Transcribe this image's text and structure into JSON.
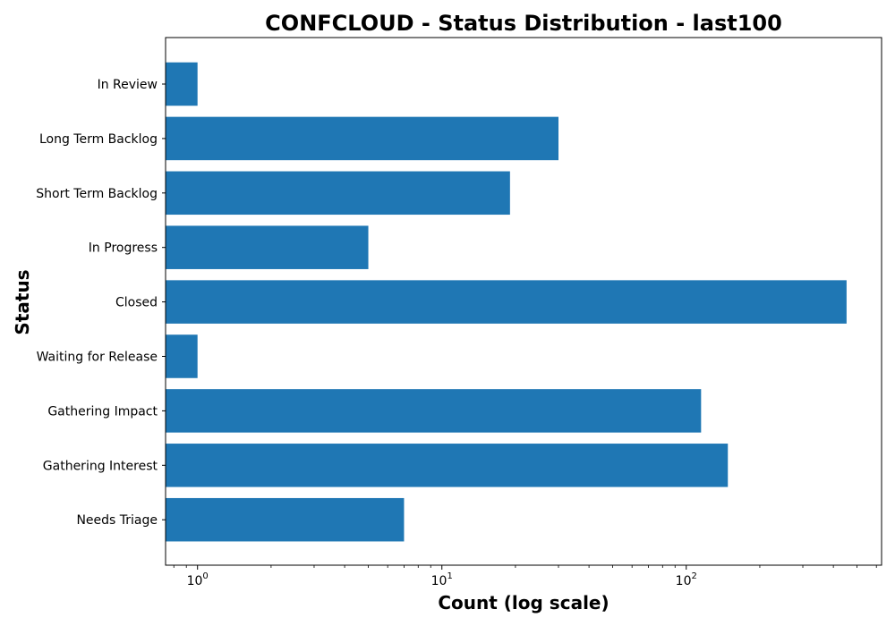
{
  "chart_data": {
    "type": "bar",
    "orientation": "horizontal",
    "title": "CONFCLOUD - Status Distribution - last100",
    "xlabel": "Count (log scale)",
    "ylabel": "Status",
    "x_scale": "log",
    "xlim": [
      0.74,
      630
    ],
    "x_ticks": [
      {
        "value": 1,
        "base": "10",
        "exp": "0"
      },
      {
        "value": 10,
        "base": "10",
        "exp": "1"
      },
      {
        "value": 100,
        "base": "10",
        "exp": "2"
      }
    ],
    "categories": [
      "In Review",
      "Long Term Backlog",
      "Short Term Backlog",
      "In Progress",
      "Closed",
      "Waiting for Release",
      "Gathering Impact",
      "Gathering Interest",
      "Needs Triage"
    ],
    "values": [
      1,
      30,
      19,
      5,
      453,
      1,
      115,
      148,
      7
    ],
    "bar_color": "#1f77b4",
    "grid": false
  }
}
